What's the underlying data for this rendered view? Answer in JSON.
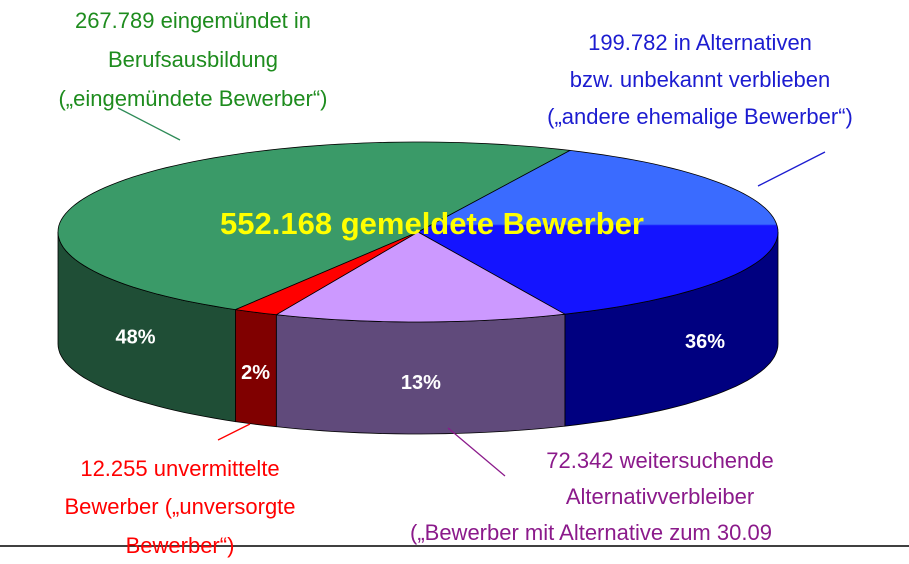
{
  "chart_data": {
    "type": "pie3d",
    "title": "552.168 gemeldete Bewerber",
    "categories": [
      [
        "267.789 eingemündet in",
        "Berufsausbildung",
        "(„eingemündete Bewerber“)"
      ],
      [
        "199.782 in Alternativen",
        "bzw. unbekannt verblieben",
        "(„andere ehemalige Bewerber“)"
      ],
      [
        "72.342 weitersuchende",
        "Alternativverbleiber",
        "(„Bewerber mit Alternative zum 30.09"
      ],
      [
        "12.255 unvermittelte",
        "Bewerber („unversorgte",
        "Bewerber“)"
      ]
    ],
    "values": [
      48,
      36,
      13,
      2
    ],
    "value_labels": [
      "48%",
      "36%",
      "13%",
      "2%"
    ],
    "colors": [
      "#3a9a68",
      "#1414ff",
      "#cc99ff",
      "#ff0000"
    ],
    "side_colors": [
      "#1f4e36",
      "#000080",
      "#604a7b",
      "#800000"
    ],
    "label_colors": [
      "#1e8c1e",
      "#1c1cd0",
      "#8b1a8b",
      "#ff0000"
    ]
  }
}
